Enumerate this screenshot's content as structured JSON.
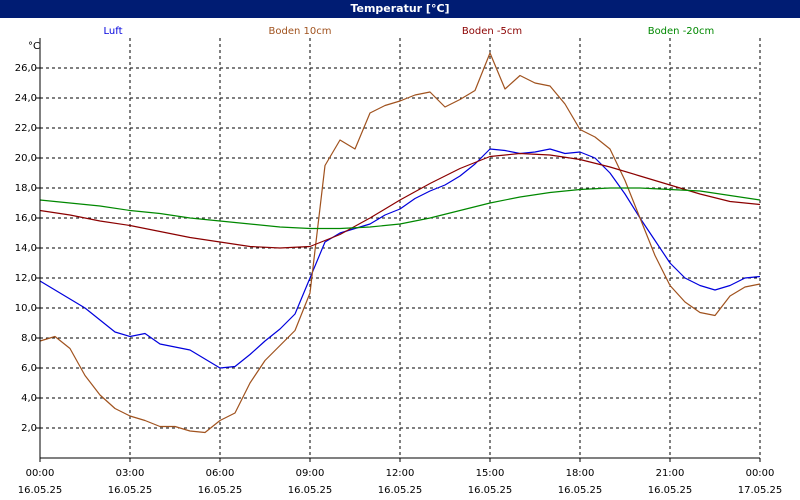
{
  "chart_data": {
    "type": "line",
    "title": "Temperatur [°C]",
    "ylabel": "°C",
    "ylim": [
      0,
      28
    ],
    "yticks": [
      "2,0",
      "4,0",
      "6,0",
      "8,0",
      "10,0",
      "12,0",
      "14,0",
      "16,0",
      "18,0",
      "20,0",
      "22,0",
      "24,0",
      "26,0"
    ],
    "yticks_values": [
      2,
      4,
      6,
      8,
      10,
      12,
      14,
      16,
      18,
      20,
      22,
      24,
      26
    ],
    "xlim": [
      0,
      24
    ],
    "xticks": [
      {
        "time": "00:00",
        "date": "16.05.25"
      },
      {
        "time": "03:00",
        "date": "16.05.25"
      },
      {
        "time": "06:00",
        "date": "16.05.25"
      },
      {
        "time": "09:00",
        "date": "16.05.25"
      },
      {
        "time": "12:00",
        "date": "16.05.25"
      },
      {
        "time": "15:00",
        "date": "16.05.25"
      },
      {
        "time": "18:00",
        "date": "16.05.25"
      },
      {
        "time": "21:00",
        "date": "16.05.25"
      },
      {
        "time": "00:00",
        "date": "17.05.25"
      }
    ],
    "grid": true,
    "legend_position": "top",
    "series": [
      {
        "name": "Luft",
        "color": "#0000dd",
        "x": [
          0,
          0.5,
          1,
          1.5,
          2,
          2.5,
          3,
          3.5,
          4,
          4.5,
          5,
          5.5,
          6,
          6.5,
          7,
          7.5,
          8,
          8.5,
          9,
          9.5,
          10,
          10.5,
          11,
          11.5,
          12,
          12.5,
          13,
          13.5,
          14,
          14.5,
          15,
          15.5,
          16,
          16.5,
          17,
          17.5,
          18,
          18.5,
          19,
          19.5,
          20,
          20.5,
          21,
          21.5,
          22,
          22.5,
          23,
          23.5,
          24
        ],
        "values": [
          11.8,
          11.2,
          10.6,
          10.0,
          9.2,
          8.4,
          8.1,
          8.3,
          7.6,
          7.4,
          7.2,
          6.6,
          6.0,
          6.1,
          6.9,
          7.8,
          8.6,
          9.6,
          12.0,
          14.4,
          15.0,
          15.3,
          15.6,
          16.2,
          16.6,
          17.3,
          17.8,
          18.2,
          18.8,
          19.6,
          20.6,
          20.5,
          20.3,
          20.4,
          20.6,
          20.3,
          20.4,
          20.0,
          19.0,
          17.6,
          16.0,
          14.5,
          13.0,
          12.0,
          11.5,
          11.2,
          11.5,
          12.0,
          12.1
        ]
      },
      {
        "name": "Boden 10cm",
        "color": "#a0521e",
        "x": [
          0,
          0.5,
          1,
          1.5,
          2,
          2.5,
          3,
          3.5,
          4,
          4.5,
          5,
          5.5,
          6,
          6.5,
          7,
          7.5,
          8,
          8.5,
          9,
          9.5,
          10,
          10.5,
          11,
          11.5,
          12,
          12.5,
          13,
          13.5,
          14,
          14.5,
          15,
          15.5,
          16,
          16.5,
          17,
          17.5,
          18,
          18.5,
          19,
          19.5,
          20,
          20.5,
          21,
          21.5,
          22,
          22.5,
          23,
          23.5,
          24
        ],
        "values": [
          7.8,
          8.1,
          7.3,
          5.5,
          4.2,
          3.3,
          2.8,
          2.5,
          2.1,
          2.1,
          1.8,
          1.7,
          2.5,
          3.0,
          5.0,
          6.5,
          7.5,
          8.5,
          11.0,
          19.5,
          21.2,
          20.6,
          23.0,
          23.5,
          23.8,
          24.2,
          24.4,
          23.4,
          23.9,
          24.5,
          27.0,
          24.6,
          25.5,
          25.0,
          24.8,
          23.6,
          21.9,
          21.4,
          20.6,
          18.5,
          16.0,
          13.5,
          11.5,
          10.4,
          9.7,
          9.5,
          10.8,
          11.4,
          11.6
        ]
      },
      {
        "name": "Boden -5cm",
        "color": "#8b0000",
        "x": [
          0,
          1,
          2,
          3,
          4,
          5,
          6,
          7,
          8,
          9,
          10,
          11,
          12,
          13,
          14,
          15,
          16,
          17,
          18,
          19,
          20,
          21,
          22,
          23,
          24
        ],
        "values": [
          16.5,
          16.2,
          15.8,
          15.5,
          15.1,
          14.7,
          14.4,
          14.1,
          14.0,
          14.1,
          14.9,
          16.0,
          17.2,
          18.3,
          19.3,
          20.1,
          20.3,
          20.2,
          19.9,
          19.4,
          18.8,
          18.2,
          17.6,
          17.1,
          16.9
        ]
      },
      {
        "name": "Boden -20cm",
        "color": "#008800",
        "x": [
          0,
          1,
          2,
          3,
          4,
          5,
          6,
          7,
          8,
          9,
          10,
          11,
          12,
          13,
          14,
          15,
          16,
          17,
          18,
          19,
          20,
          21,
          22,
          23,
          24
        ],
        "values": [
          17.2,
          17.0,
          16.8,
          16.5,
          16.3,
          16.0,
          15.8,
          15.6,
          15.4,
          15.3,
          15.3,
          15.4,
          15.6,
          16.0,
          16.5,
          17.0,
          17.4,
          17.7,
          17.9,
          18.0,
          18.0,
          17.9,
          17.8,
          17.5,
          17.2
        ]
      }
    ]
  }
}
